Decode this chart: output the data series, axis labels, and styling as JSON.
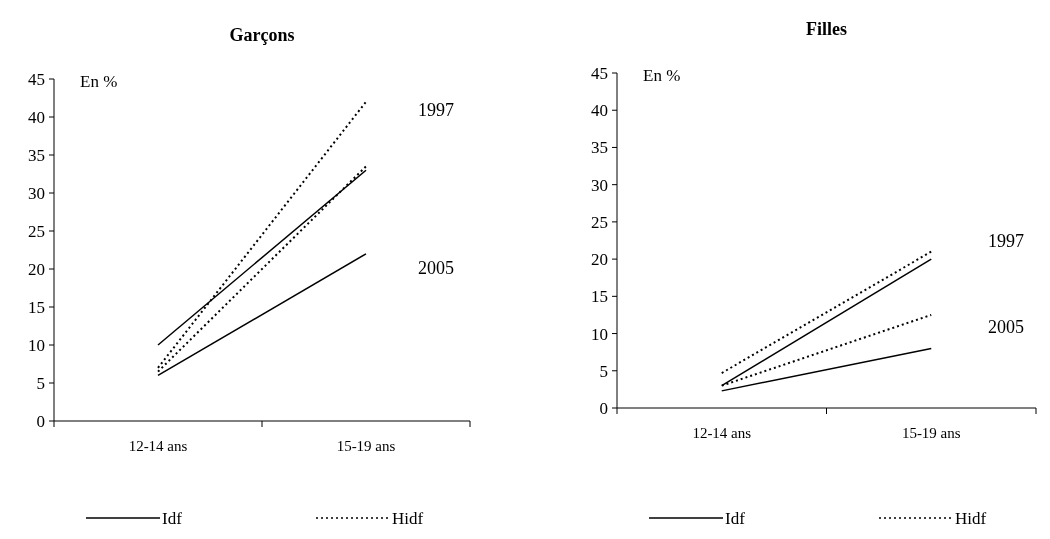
{
  "chart_data": [
    {
      "type": "line",
      "title": "Garçons",
      "ylabel": "En %",
      "categories": [
        "12-14 ans",
        "15-19 ans"
      ],
      "ylim": [
        0,
        45
      ],
      "yticks": [
        0,
        5,
        10,
        15,
        20,
        25,
        30,
        35,
        40,
        45
      ],
      "legend": "bottom",
      "marker": "none",
      "series": [
        {
          "name": "Idf",
          "color": "#000000",
          "line_style": "solid",
          "values": [
            10,
            33
          ]
        },
        {
          "color": "#000000",
          "line_style": "solid",
          "values": [
            6,
            22
          ]
        },
        {
          "name": "Hidf",
          "color": "#000000",
          "line_style": "dotted",
          "values": [
            7,
            42
          ]
        },
        {
          "color": "#000000",
          "line_style": "dotted",
          "values": [
            6.5,
            33.5
          ]
        }
      ],
      "annotations": [
        "1997",
        "2005"
      ]
    },
    {
      "type": "line",
      "title": "Filles",
      "ylabel": "En %",
      "categories": [
        "12-14 ans",
        "15-19 ans"
      ],
      "ylim": [
        0,
        45
      ],
      "yticks": [
        0,
        5,
        10,
        15,
        20,
        25,
        30,
        35,
        40,
        45
      ],
      "legend": "bottom",
      "marker": "none",
      "series": [
        {
          "name": "Idf",
          "color": "#000000",
          "line_style": "solid",
          "values": [
            3,
            20
          ]
        },
        {
          "color": "#000000",
          "line_style": "solid",
          "values": [
            2.3,
            8
          ]
        },
        {
          "name": "Hidf",
          "color": "#000000",
          "line_style": "dotted",
          "values": [
            4.7,
            21
          ]
        },
        {
          "color": "#000000",
          "line_style": "dotted",
          "values": [
            3,
            12.5
          ]
        }
      ],
      "annotations": [
        "1997",
        "2005"
      ]
    }
  ]
}
